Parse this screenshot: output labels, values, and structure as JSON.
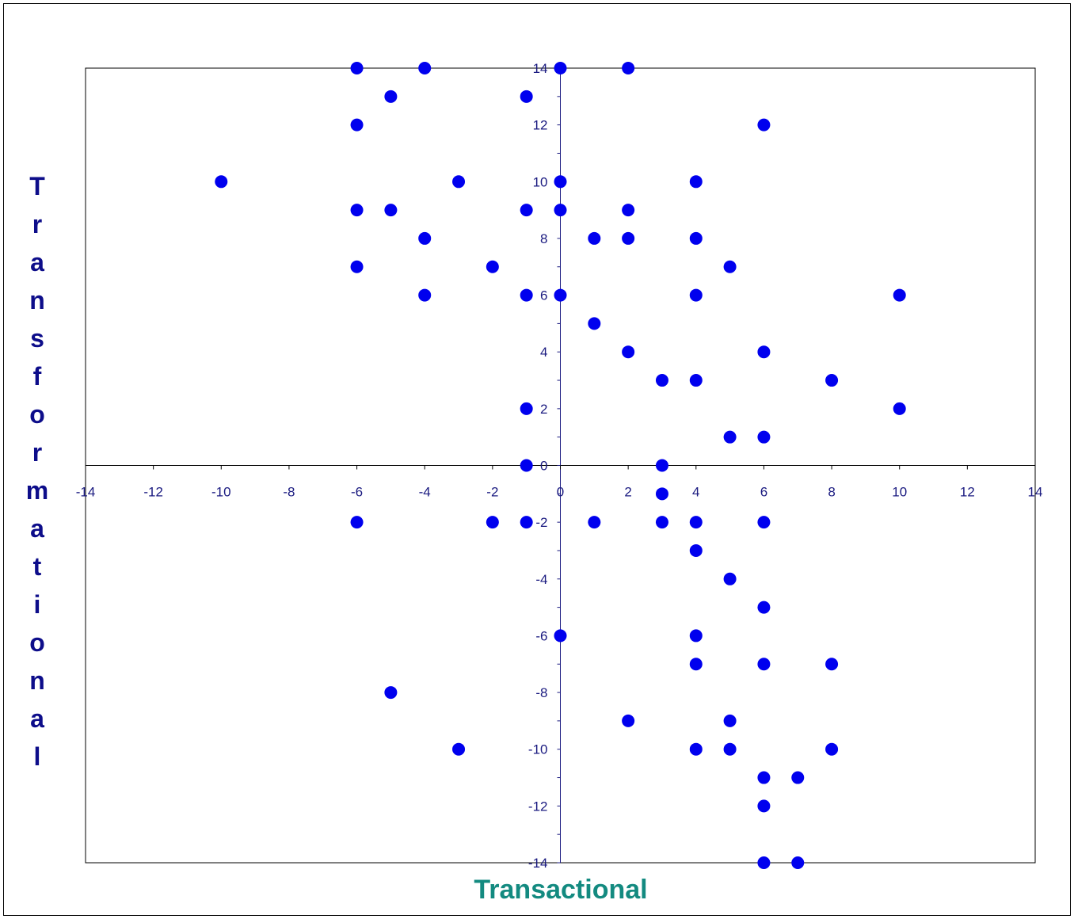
{
  "chart_data": {
    "type": "scatter",
    "title": "",
    "xlabel": "Transactional",
    "ylabel": "Transformational",
    "xlim": [
      -14,
      14
    ],
    "ylim": [
      -14,
      14
    ],
    "x_ticks": [
      -14,
      -12,
      -10,
      -8,
      -6,
      -4,
      -2,
      0,
      2,
      4,
      6,
      8,
      10,
      12,
      14
    ],
    "y_ticks": [
      -14,
      -12,
      -10,
      -8,
      -6,
      -4,
      -2,
      0,
      2,
      4,
      6,
      8,
      10,
      12,
      14
    ],
    "grid": false,
    "legend": "none",
    "marker_color": "#0000ee",
    "axis_color": "#1a1a80",
    "series": [
      {
        "x": [
          -6,
          -4,
          0,
          2,
          -5,
          -1,
          -6,
          6,
          -10,
          -3,
          0,
          4,
          -6,
          -5,
          -1,
          0,
          2,
          -4,
          1,
          2,
          4,
          -6,
          -2,
          5,
          -4,
          -1,
          0,
          4,
          10,
          1,
          2,
          6,
          3,
          4,
          8,
          -1,
          10,
          5,
          6,
          -1,
          3,
          3,
          -6,
          -2,
          -1,
          1,
          3,
          4,
          6,
          4,
          5,
          6,
          0,
          4,
          4,
          6,
          8,
          -5,
          2,
          5,
          -3,
          4,
          5,
          8,
          6,
          7,
          6,
          6,
          7
        ],
        "y": [
          14,
          14,
          14,
          14,
          13,
          13,
          12,
          12,
          10,
          10,
          10,
          10,
          9,
          9,
          9,
          9,
          9,
          8,
          8,
          8,
          8,
          7,
          7,
          7,
          6,
          6,
          6,
          6,
          6,
          5,
          4,
          4,
          3,
          3,
          3,
          2,
          2,
          1,
          1,
          0,
          0,
          -1,
          -2,
          -2,
          -2,
          -2,
          -2,
          -2,
          -2,
          -3,
          -4,
          -5,
          -6,
          -6,
          -7,
          -7,
          -7,
          -8,
          -9,
          -9,
          -10,
          -10,
          -10,
          -10,
          -11,
          -11,
          -12,
          -14,
          -14
        ]
      }
    ]
  }
}
